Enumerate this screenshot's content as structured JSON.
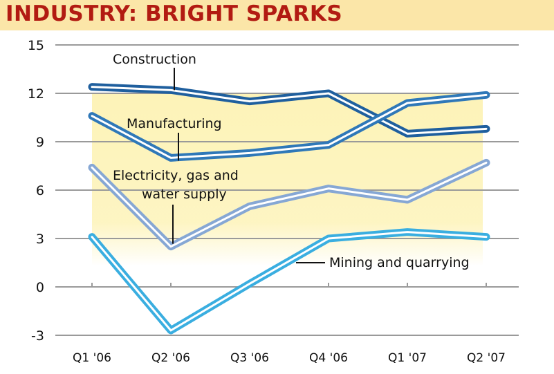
{
  "title": "INDUSTRY: BRIGHT SPARKS",
  "colors": {
    "title_text": "#b21b12",
    "title_band": "#fbe6a8",
    "plot_highlight": "#fdf3b8",
    "grid": "#9a9a9a"
  },
  "chart_data": {
    "type": "line",
    "categories": [
      "Q1 '06",
      "Q2 '06",
      "Q3 '06",
      "Q4 '06",
      "Q1 '07",
      "Q2 '07"
    ],
    "ylim": [
      -3,
      15
    ],
    "yticks": [
      15,
      12,
      9,
      6,
      3,
      0,
      -3
    ],
    "grid": true,
    "series": [
      {
        "name": "Construction",
        "color": "#1f5f9e",
        "values": [
          12.4,
          12.2,
          11.5,
          12.0,
          9.5,
          9.8
        ]
      },
      {
        "name": "Manufacturing",
        "color": "#2f78b8",
        "values": [
          10.6,
          8.0,
          8.3,
          8.8,
          11.4,
          11.9
        ]
      },
      {
        "name": "Electricity, gas and water supply",
        "label_lines": [
          "Electricity, gas and",
          "water supply"
        ],
        "color": "#86a7d4",
        "values": [
          7.4,
          2.5,
          5.0,
          6.1,
          5.4,
          7.7
        ]
      },
      {
        "name": "Mining and quarrying",
        "color": "#3aaee0",
        "values": [
          3.1,
          -2.7,
          0.2,
          3.0,
          3.4,
          3.1
        ]
      }
    ]
  }
}
